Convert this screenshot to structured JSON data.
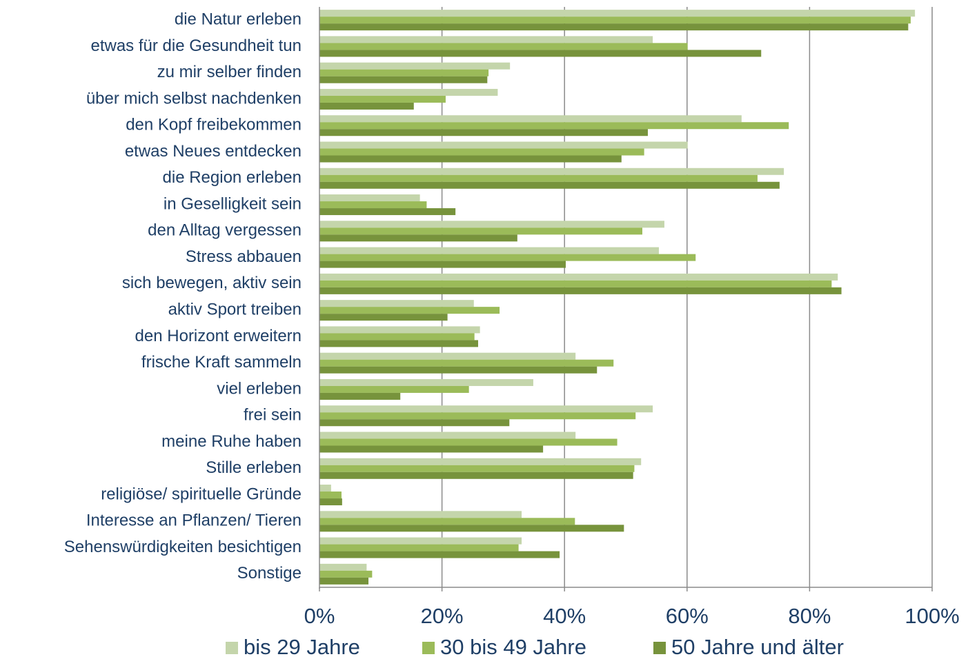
{
  "chart_data": {
    "type": "bar",
    "orientation": "horizontal",
    "categories": [
      "die Natur erleben",
      "etwas für die Gesundheit tun",
      "zu mir selber finden",
      "über mich selbst nachdenken",
      "den Kopf freibekommen",
      "etwas Neues entdecken",
      "die Region erleben",
      "in Geselligkeit sein",
      "den Alltag vergessen",
      "Stress abbauen",
      "sich bewegen, aktiv sein",
      "aktiv Sport treiben",
      "den Horizont erweitern",
      "frische Kraft sammeln",
      "viel erleben",
      "frei sein",
      "meine Ruhe haben",
      "Stille erleben",
      "religiöse/ spirituelle Gründe",
      "Interesse an Pflanzen/ Tieren",
      "Sehenswürdigkeiten besichtigen",
      "Sonstige"
    ],
    "series": [
      {
        "name": "bis 29 Jahre",
        "color": "#c4d5ab",
        "values": [
          97.2,
          54.4,
          31.1,
          29.1,
          68.9,
          60.1,
          75.8,
          16.4,
          56.3,
          55.4,
          84.6,
          25.2,
          26.2,
          41.8,
          34.9,
          54.4,
          41.8,
          52.5,
          1.9,
          33.0,
          33.0,
          7.7
        ]
      },
      {
        "name": "30 bis 49 Jahre",
        "color": "#9bbb59",
        "values": [
          96.5,
          60.1,
          27.6,
          20.6,
          76.6,
          53.0,
          71.5,
          17.5,
          52.7,
          61.4,
          83.6,
          29.4,
          25.3,
          48.0,
          24.4,
          51.6,
          48.6,
          51.4,
          3.6,
          41.7,
          32.5,
          8.6
        ]
      },
      {
        "name": "50 Jahre und älter",
        "color": "#77933c",
        "values": [
          96.1,
          72.1,
          27.4,
          15.4,
          53.6,
          49.3,
          75.1,
          22.2,
          32.3,
          40.2,
          85.2,
          20.9,
          25.9,
          45.3,
          13.2,
          31.0,
          36.5,
          51.2,
          3.7,
          49.7,
          39.2,
          8.0
        ]
      }
    ],
    "xlim": [
      0,
      100
    ],
    "xticks": [
      {
        "value": 0,
        "label": "0%"
      },
      {
        "value": 20,
        "label": "20%"
      },
      {
        "value": 40,
        "label": "40%"
      },
      {
        "value": 60,
        "label": "60%"
      },
      {
        "value": 80,
        "label": "80%"
      },
      {
        "value": 100,
        "label": "100%"
      }
    ],
    "grid": true,
    "legend": "bottom"
  }
}
